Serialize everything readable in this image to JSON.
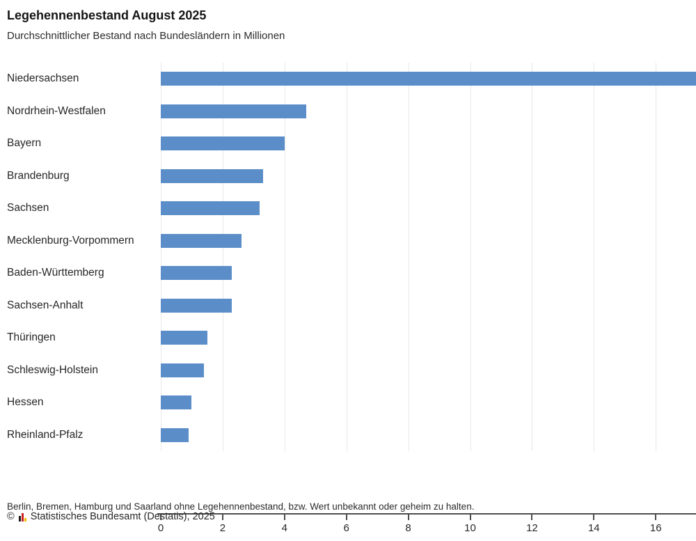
{
  "header": {
    "title": "Legehennenbestand August 2025",
    "subtitle": "Durchschnittlicher Bestand nach Bundesländern in Millionen"
  },
  "chart_data": {
    "type": "bar",
    "orientation": "horizontal",
    "title": "Legehennenbestand August 2025",
    "subtitle": "Durchschnittlicher Bestand nach Bundesländern in Millionen",
    "xlabel": "",
    "ylabel": "",
    "unit": "Millionen",
    "categories": [
      "Niedersachsen",
      "Nordrhein-Westfalen",
      "Bayern",
      "Brandenburg",
      "Sachsen",
      "Mecklenburg-Vorpommern",
      "Baden-Württemberg",
      "Sachsen-Anhalt",
      "Thüringen",
      "Schleswig-Holstein",
      "Hessen",
      "Rheinland-Pfalz"
    ],
    "values": [
      17.3,
      4.7,
      4.0,
      3.3,
      3.2,
      2.6,
      2.3,
      2.3,
      1.5,
      1.4,
      1.0,
      0.9
    ],
    "xlim": [
      0,
      17.3
    ],
    "xticks": [
      0,
      2,
      4,
      6,
      8,
      10,
      12,
      14,
      16
    ],
    "grid": true,
    "legend": false
  },
  "footer": {
    "note": "Berlin, Bremen, Hamburg und Saarland ohne Legehennenbestand, bzw. Wert unbekannt oder geheim zu halten.",
    "copyright_symbol": "©",
    "copyright_text": "Statistisches Bundesamt (Destatis), 2025"
  },
  "colors": {
    "bar": "#5b8ec8",
    "gridline": "#e7e7e7",
    "axis": "#4c4c4c",
    "logo_black": "#1a1a1a",
    "logo_red": "#cc2222",
    "logo_gold": "#f5b800"
  }
}
